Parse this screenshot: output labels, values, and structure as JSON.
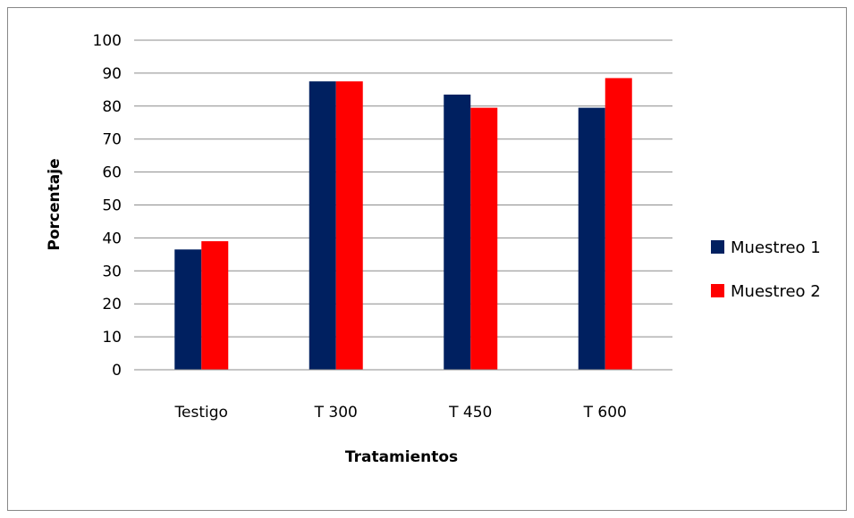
{
  "chart_data": {
    "type": "bar",
    "title": "",
    "xlabel": "Tratamientos",
    "ylabel": "Porcentaje",
    "categories": [
      "Testigo",
      "T 300",
      "T 450",
      "T 600"
    ],
    "series": [
      {
        "name": "Muestreo 1",
        "color": "#002060",
        "values": [
          36.5,
          87.5,
          83.5,
          79.5
        ]
      },
      {
        "name": "Muestreo 2",
        "color": "#ff0000",
        "values": [
          39,
          87.5,
          79.5,
          88.5
        ]
      }
    ],
    "ylim": [
      0,
      100
    ],
    "yticks": [
      "0",
      "10",
      "20",
      "30",
      "40",
      "50",
      "60",
      "70",
      "80",
      "90",
      "100"
    ],
    "grid": true,
    "legend_position": "right"
  }
}
